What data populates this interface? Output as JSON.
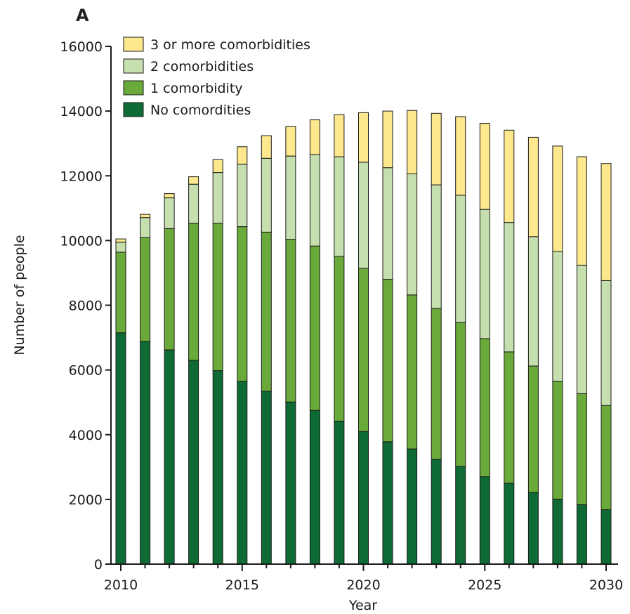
{
  "panel_label": "A",
  "chart_data": {
    "type": "bar",
    "stacked": true,
    "xlabel": "Year",
    "ylabel": "Number of people",
    "ylim": [
      0,
      16000
    ],
    "yticks": [
      0,
      2000,
      4000,
      6000,
      8000,
      10000,
      12000,
      14000,
      16000
    ],
    "ytick_labels": [
      "0",
      "2000",
      "4000",
      "6000",
      "8000",
      "10000",
      "12000",
      "14000",
      "16000"
    ],
    "xticks": [
      2010,
      2015,
      2020,
      2025,
      2030
    ],
    "xtick_labels": [
      "2010",
      "2015",
      "2020",
      "2025",
      "2030"
    ],
    "grid": false,
    "legend_position": "top-left",
    "categories": [
      2010,
      2011,
      2012,
      2013,
      2014,
      2015,
      2016,
      2017,
      2018,
      2019,
      2020,
      2021,
      2022,
      2023,
      2024,
      2025,
      2026,
      2027,
      2028,
      2029,
      2030
    ],
    "series": [
      {
        "name": "No comordities",
        "color": "#0e6b35",
        "values": [
          7150,
          6880,
          6620,
          6300,
          5980,
          5650,
          5340,
          5010,
          4750,
          4420,
          4100,
          3780,
          3560,
          3240,
          3020,
          2700,
          2500,
          2220,
          2010,
          1840,
          1680
        ]
      },
      {
        "name": "1 comorbidity",
        "color": "#6aaa3a",
        "values": [
          2490,
          3210,
          3750,
          4230,
          4550,
          4780,
          4920,
          5030,
          5080,
          5090,
          5040,
          5020,
          4760,
          4660,
          4450,
          4270,
          4060,
          3900,
          3640,
          3430,
          3220
        ]
      },
      {
        "name": "2 comorbidities",
        "color": "#c6dfae",
        "values": [
          310,
          620,
          950,
          1210,
          1570,
          1930,
          2280,
          2570,
          2830,
          3080,
          3280,
          3450,
          3740,
          3820,
          3930,
          3990,
          4000,
          4000,
          4010,
          3970,
          3860
        ]
      },
      {
        "name": "3 or more comorbidities",
        "color": "#fde88e",
        "values": [
          100,
          100,
          130,
          230,
          400,
          540,
          700,
          910,
          1070,
          1300,
          1530,
          1750,
          1960,
          2210,
          2430,
          2660,
          2850,
          3070,
          3260,
          3350,
          3620
        ]
      }
    ]
  }
}
